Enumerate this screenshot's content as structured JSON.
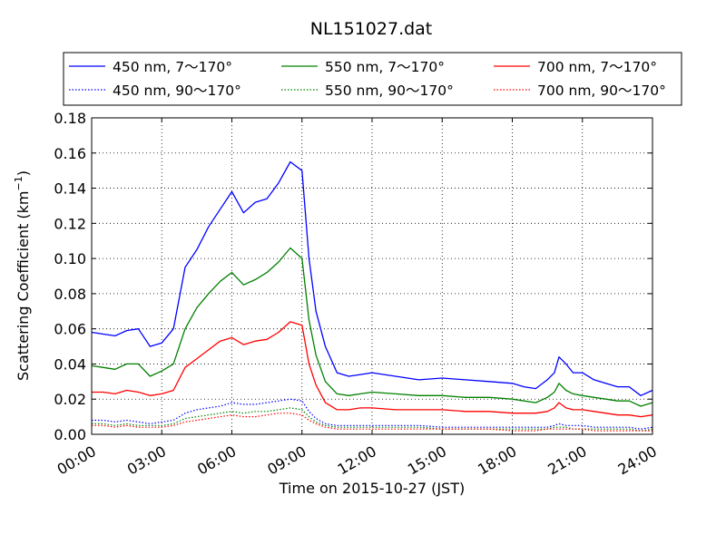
{
  "chart_data": {
    "type": "line",
    "title": "NL151027.dat",
    "xlabel": "Time on 2015-10-27 (JST)",
    "ylabel_text": "Scattering Coefficient (km",
    "ylabel_sup": "−1",
    "ylabel_end": ")",
    "xlim": [
      0,
      24
    ],
    "ylim": [
      0,
      0.18
    ],
    "x_ticks": [
      0,
      3,
      6,
      9,
      12,
      15,
      18,
      21,
      24
    ],
    "x_tick_labels": [
      "00:00",
      "03:00",
      "06:00",
      "09:00",
      "12:00",
      "15:00",
      "18:00",
      "21:00",
      "24:00"
    ],
    "y_ticks": [
      0,
      0.02,
      0.04,
      0.06,
      0.08,
      0.1,
      0.12,
      0.14,
      0.16,
      0.18
    ],
    "y_tick_labels": [
      "0.00",
      "0.02",
      "0.04",
      "0.06",
      "0.08",
      "0.10",
      "0.12",
      "0.14",
      "0.16",
      "0.18"
    ],
    "grid": true,
    "legend_placement": "top, above plot, 3 columns",
    "x": [
      0,
      0.5,
      1,
      1.5,
      2,
      2.5,
      3,
      3.5,
      4,
      4.5,
      5,
      5.5,
      6,
      6.5,
      7,
      7.5,
      8,
      8.5,
      9,
      9.3,
      9.6,
      10,
      10.5,
      11,
      11.5,
      12,
      13,
      14,
      15,
      16,
      17,
      18,
      18.5,
      19,
      19.5,
      19.8,
      20,
      20.3,
      20.6,
      21,
      21.5,
      22,
      22.5,
      23,
      23.5,
      24
    ],
    "series": [
      {
        "name": "450 nm, 7～170°",
        "color": "#0000ff",
        "style": "solid",
        "values": [
          0.058,
          0.057,
          0.056,
          0.059,
          0.06,
          0.05,
          0.052,
          0.06,
          0.095,
          0.105,
          0.118,
          0.128,
          0.138,
          0.126,
          0.132,
          0.134,
          0.143,
          0.155,
          0.15,
          0.1,
          0.07,
          0.05,
          0.035,
          0.033,
          0.034,
          0.035,
          0.033,
          0.031,
          0.032,
          0.031,
          0.03,
          0.029,
          0.027,
          0.026,
          0.031,
          0.035,
          0.044,
          0.04,
          0.035,
          0.035,
          0.031,
          0.029,
          0.027,
          0.027,
          0.022,
          0.025
        ]
      },
      {
        "name": "550 nm, 7～170°",
        "color": "#008000",
        "style": "solid",
        "values": [
          0.039,
          0.038,
          0.037,
          0.04,
          0.04,
          0.033,
          0.036,
          0.04,
          0.06,
          0.072,
          0.08,
          0.087,
          0.092,
          0.085,
          0.088,
          0.092,
          0.098,
          0.106,
          0.1,
          0.065,
          0.045,
          0.03,
          0.023,
          0.022,
          0.023,
          0.024,
          0.023,
          0.022,
          0.022,
          0.021,
          0.021,
          0.02,
          0.019,
          0.018,
          0.021,
          0.024,
          0.029,
          0.025,
          0.023,
          0.022,
          0.021,
          0.02,
          0.019,
          0.019,
          0.016,
          0.018
        ]
      },
      {
        "name": "700 nm, 7～170°",
        "color": "#ff0000",
        "style": "solid",
        "values": [
          0.024,
          0.024,
          0.023,
          0.025,
          0.024,
          0.022,
          0.023,
          0.025,
          0.038,
          0.043,
          0.048,
          0.053,
          0.055,
          0.051,
          0.053,
          0.054,
          0.058,
          0.064,
          0.062,
          0.04,
          0.028,
          0.018,
          0.014,
          0.014,
          0.015,
          0.015,
          0.014,
          0.014,
          0.014,
          0.013,
          0.013,
          0.012,
          0.012,
          0.012,
          0.013,
          0.015,
          0.018,
          0.015,
          0.014,
          0.014,
          0.013,
          0.012,
          0.011,
          0.011,
          0.01,
          0.011
        ]
      },
      {
        "name": "450 nm, 90～170°",
        "color": "#0000ff",
        "style": "dotted",
        "values": [
          0.008,
          0.008,
          0.007,
          0.008,
          0.007,
          0.006,
          0.007,
          0.008,
          0.012,
          0.014,
          0.015,
          0.016,
          0.018,
          0.017,
          0.017,
          0.018,
          0.019,
          0.02,
          0.019,
          0.013,
          0.009,
          0.006,
          0.005,
          0.005,
          0.005,
          0.005,
          0.005,
          0.005,
          0.004,
          0.004,
          0.004,
          0.004,
          0.004,
          0.004,
          0.004,
          0.005,
          0.006,
          0.005,
          0.005,
          0.005,
          0.004,
          0.004,
          0.004,
          0.004,
          0.003,
          0.004
        ]
      },
      {
        "name": "550 nm, 90～170°",
        "color": "#008000",
        "style": "dotted",
        "values": [
          0.006,
          0.006,
          0.005,
          0.006,
          0.005,
          0.005,
          0.005,
          0.006,
          0.009,
          0.01,
          0.011,
          0.012,
          0.013,
          0.012,
          0.013,
          0.013,
          0.014,
          0.015,
          0.014,
          0.01,
          0.007,
          0.005,
          0.004,
          0.004,
          0.004,
          0.004,
          0.004,
          0.004,
          0.003,
          0.003,
          0.003,
          0.003,
          0.003,
          0.003,
          0.003,
          0.004,
          0.004,
          0.004,
          0.003,
          0.003,
          0.003,
          0.003,
          0.003,
          0.003,
          0.002,
          0.003
        ]
      },
      {
        "name": "700 nm, 90～170°",
        "color": "#ff0000",
        "style": "dotted",
        "values": [
          0.005,
          0.005,
          0.004,
          0.005,
          0.004,
          0.004,
          0.004,
          0.005,
          0.007,
          0.008,
          0.009,
          0.01,
          0.011,
          0.01,
          0.01,
          0.011,
          0.012,
          0.012,
          0.011,
          0.008,
          0.006,
          0.004,
          0.003,
          0.003,
          0.003,
          0.003,
          0.003,
          0.003,
          0.003,
          0.003,
          0.003,
          0.002,
          0.002,
          0.002,
          0.003,
          0.003,
          0.003,
          0.003,
          0.003,
          0.003,
          0.002,
          0.002,
          0.002,
          0.002,
          0.002,
          0.002
        ]
      }
    ]
  }
}
